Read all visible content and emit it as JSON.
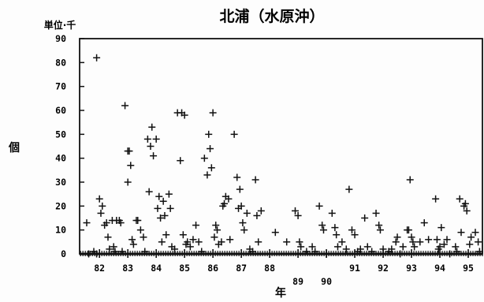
{
  "chart_data": {
    "type": "scatter",
    "title": "北浦（水原沖）",
    "y_unit_label": "単位·千",
    "ylabel": "個",
    "xlabel": "年",
    "marker": "+",
    "ylim": [
      0,
      90
    ],
    "yticks": [
      0,
      10,
      20,
      30,
      40,
      50,
      60,
      70,
      80,
      90
    ],
    "xlim": [
      1981.3,
      1995.5
    ],
    "xticks": [
      {
        "label": "82",
        "x": 1982.0,
        "row": 0
      },
      {
        "label": "83",
        "x": 1983.0,
        "row": 0
      },
      {
        "label": "84",
        "x": 1984.0,
        "row": 0
      },
      {
        "label": "85",
        "x": 1985.0,
        "row": 0
      },
      {
        "label": "86",
        "x": 1986.0,
        "row": 0
      },
      {
        "label": "87",
        "x": 1987.0,
        "row": 0
      },
      {
        "label": "88",
        "x": 1988.0,
        "row": 0
      },
      {
        "label": "89",
        "x": 1989.0,
        "row": 1
      },
      {
        "label": "90",
        "x": 1990.0,
        "row": 1
      },
      {
        "label": "91",
        "x": 1991.0,
        "row": 0
      },
      {
        "label": "92",
        "x": 1992.0,
        "row": 0
      },
      {
        "label": "93",
        "x": 1993.0,
        "row": 0
      },
      {
        "label": "94",
        "x": 1994.0,
        "row": 0
      },
      {
        "label": "95",
        "x": 1995.0,
        "row": 0
      }
    ],
    "grid": false,
    "legend": "none",
    "points": [
      [
        1981.55,
        13
      ],
      [
        1981.62,
        0
      ],
      [
        1981.8,
        1
      ],
      [
        1981.9,
        0
      ],
      [
        1981.9,
        82
      ],
      [
        1982.0,
        23
      ],
      [
        1982.05,
        17
      ],
      [
        1982.1,
        20
      ],
      [
        1982.18,
        12
      ],
      [
        1982.25,
        13
      ],
      [
        1982.3,
        7
      ],
      [
        1982.35,
        2
      ],
      [
        1982.45,
        14
      ],
      [
        1982.5,
        3
      ],
      [
        1982.55,
        1
      ],
      [
        1982.6,
        14
      ],
      [
        1982.7,
        14
      ],
      [
        1982.75,
        13
      ],
      [
        1982.8,
        1
      ],
      [
        1982.9,
        62
      ],
      [
        1983.0,
        43
      ],
      [
        1983.05,
        43
      ],
      [
        1983.0,
        30
      ],
      [
        1983.1,
        37
      ],
      [
        1983.15,
        6
      ],
      [
        1983.2,
        4
      ],
      [
        1983.3,
        14
      ],
      [
        1983.35,
        14
      ],
      [
        1983.45,
        10
      ],
      [
        1983.55,
        7
      ],
      [
        1983.6,
        1
      ],
      [
        1983.7,
        48
      ],
      [
        1983.75,
        26
      ],
      [
        1983.8,
        45
      ],
      [
        1983.85,
        53
      ],
      [
        1983.9,
        41
      ],
      [
        1984.0,
        48
      ],
      [
        1984.05,
        19
      ],
      [
        1984.1,
        24
      ],
      [
        1984.15,
        15
      ],
      [
        1984.2,
        5
      ],
      [
        1984.25,
        22
      ],
      [
        1984.3,
        16
      ],
      [
        1984.35,
        8
      ],
      [
        1984.45,
        25
      ],
      [
        1984.5,
        19
      ],
      [
        1984.55,
        3
      ],
      [
        1984.65,
        2
      ],
      [
        1984.75,
        59
      ],
      [
        1984.85,
        39
      ],
      [
        1984.9,
        59
      ],
      [
        1985.0,
        58
      ],
      [
        1984.95,
        8
      ],
      [
        1985.05,
        4
      ],
      [
        1985.1,
        5
      ],
      [
        1985.2,
        3
      ],
      [
        1985.3,
        6
      ],
      [
        1985.4,
        12
      ],
      [
        1985.5,
        5
      ],
      [
        1985.6,
        1
      ],
      [
        1985.7,
        40
      ],
      [
        1985.8,
        33
      ],
      [
        1985.85,
        50
      ],
      [
        1985.9,
        44
      ],
      [
        1986.0,
        59
      ],
      [
        1985.95,
        36
      ],
      [
        1986.05,
        7
      ],
      [
        1986.1,
        12
      ],
      [
        1986.15,
        10
      ],
      [
        1986.2,
        4
      ],
      [
        1986.3,
        5
      ],
      [
        1986.35,
        20
      ],
      [
        1986.4,
        21
      ],
      [
        1986.45,
        24
      ],
      [
        1986.55,
        23
      ],
      [
        1986.6,
        6
      ],
      [
        1986.75,
        50
      ],
      [
        1986.85,
        32
      ],
      [
        1986.9,
        19
      ],
      [
        1986.95,
        27
      ],
      [
        1987.0,
        20
      ],
      [
        1987.05,
        13
      ],
      [
        1987.1,
        10
      ],
      [
        1987.2,
        17
      ],
      [
        1987.3,
        2
      ],
      [
        1987.4,
        1
      ],
      [
        1987.5,
        31
      ],
      [
        1987.55,
        16
      ],
      [
        1987.6,
        5
      ],
      [
        1987.7,
        18
      ],
      [
        1988.2,
        9
      ],
      [
        1988.6,
        5
      ],
      [
        1988.9,
        18
      ],
      [
        1989.0,
        16
      ],
      [
        1989.05,
        5
      ],
      [
        1989.1,
        3
      ],
      [
        1989.3,
        1
      ],
      [
        1989.5,
        3
      ],
      [
        1989.6,
        1
      ],
      [
        1989.75,
        20
      ],
      [
        1989.85,
        12
      ],
      [
        1989.9,
        10
      ],
      [
        1990.0,
        0
      ],
      [
        1990.2,
        17
      ],
      [
        1990.3,
        11
      ],
      [
        1990.35,
        8
      ],
      [
        1990.4,
        3
      ],
      [
        1990.55,
        5
      ],
      [
        1990.7,
        2
      ],
      [
        1990.8,
        27
      ],
      [
        1990.9,
        10
      ],
      [
        1991.0,
        8
      ],
      [
        1991.1,
        1
      ],
      [
        1991.2,
        2
      ],
      [
        1991.35,
        15
      ],
      [
        1991.45,
        3
      ],
      [
        1991.6,
        1
      ],
      [
        1991.75,
        17
      ],
      [
        1991.85,
        12
      ],
      [
        1991.9,
        10
      ],
      [
        1992.0,
        2
      ],
      [
        1992.2,
        1
      ],
      [
        1992.3,
        2
      ],
      [
        1992.45,
        5
      ],
      [
        1992.5,
        7
      ],
      [
        1992.6,
        0
      ],
      [
        1992.7,
        3
      ],
      [
        1992.85,
        10
      ],
      [
        1992.9,
        10
      ],
      [
        1992.95,
        31
      ],
      [
        1993.0,
        7
      ],
      [
        1993.05,
        5
      ],
      [
        1993.1,
        3
      ],
      [
        1993.3,
        5
      ],
      [
        1993.45,
        13
      ],
      [
        1993.6,
        6
      ],
      [
        1993.85,
        23
      ],
      [
        1993.9,
        6
      ],
      [
        1993.95,
        2
      ],
      [
        1994.0,
        3
      ],
      [
        1994.05,
        11
      ],
      [
        1994.15,
        4
      ],
      [
        1994.25,
        6
      ],
      [
        1994.35,
        0
      ],
      [
        1994.55,
        3
      ],
      [
        1994.6,
        1
      ],
      [
        1994.7,
        23
      ],
      [
        1994.75,
        9
      ],
      [
        1994.85,
        20
      ],
      [
        1994.9,
        21
      ],
      [
        1994.95,
        18
      ],
      [
        1995.05,
        4
      ],
      [
        1995.1,
        7
      ],
      [
        1995.25,
        9
      ],
      [
        1995.35,
        5
      ],
      [
        1995.4,
        1
      ]
    ]
  }
}
